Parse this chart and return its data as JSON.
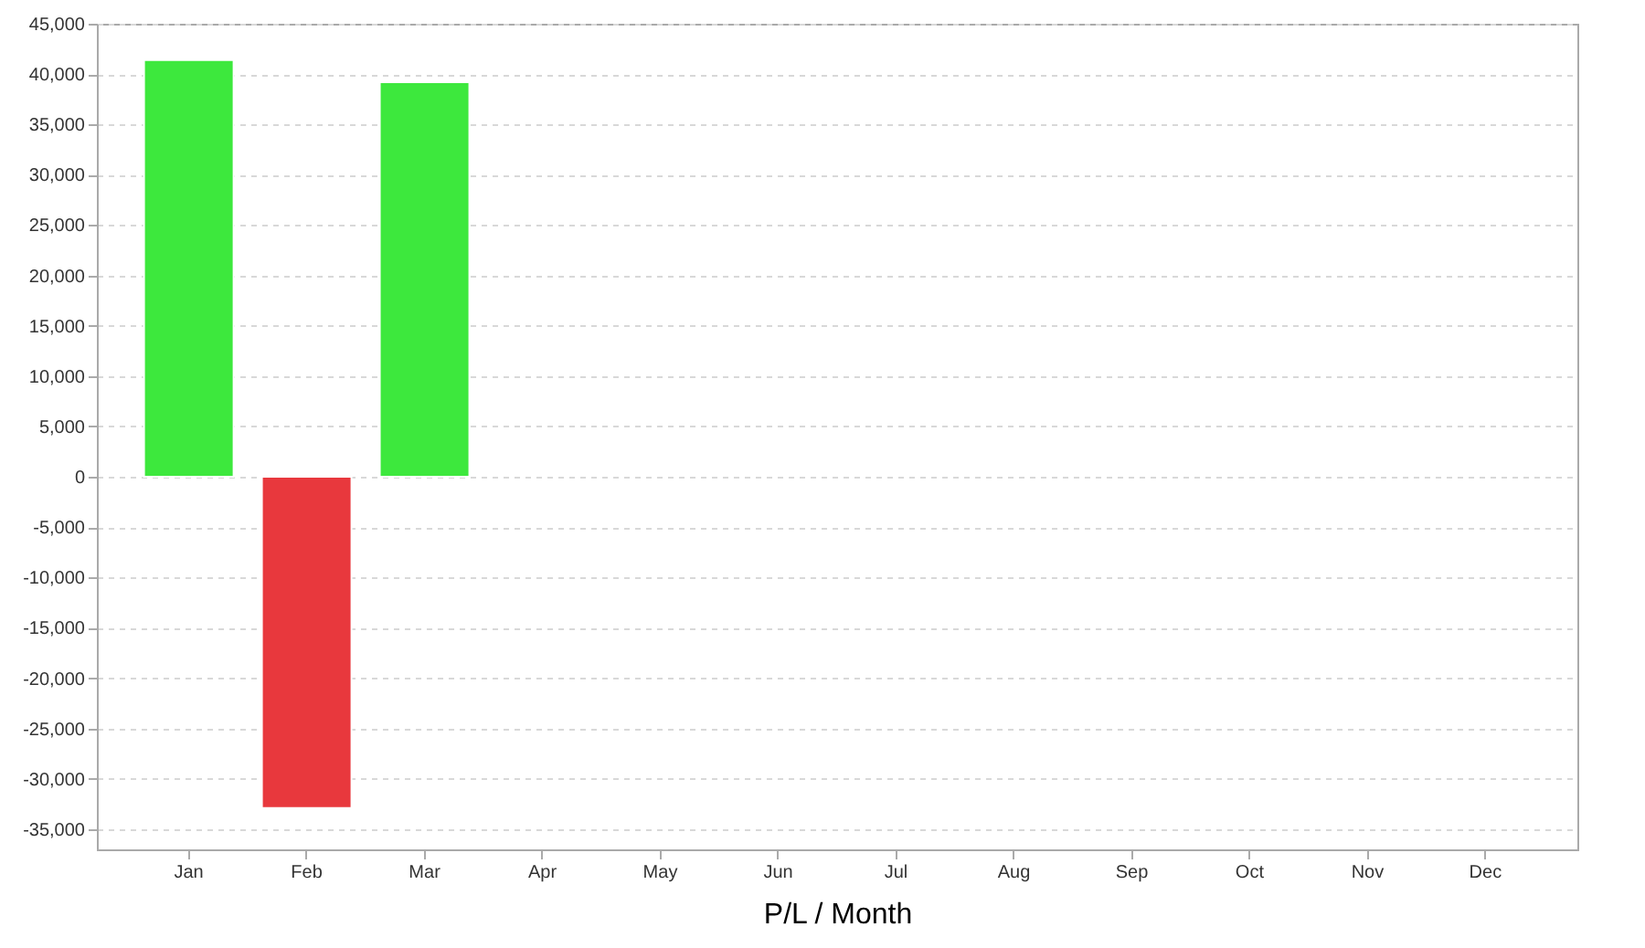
{
  "chart_data": {
    "type": "bar",
    "xlabel": "P/L / Month",
    "categories": [
      "Jan",
      "Feb",
      "Mar",
      "Apr",
      "May",
      "Jun",
      "Jul",
      "Aug",
      "Sep",
      "Oct",
      "Nov",
      "Dec"
    ],
    "values": [
      41400,
      -32900,
      39200,
      null,
      null,
      null,
      null,
      null,
      null,
      null,
      null,
      null
    ],
    "colors": [
      "#3de83d",
      "#e8383d",
      "#3de83d",
      "#3de83d",
      "#3de83d",
      "#3de83d",
      "#3de83d",
      "#3de83d",
      "#3de83d",
      "#3de83d",
      "#3de83d",
      "#3de83d"
    ],
    "ylim": [
      -37000,
      45000
    ],
    "yticks": [
      {
        "value": -35000,
        "label": "-35,000"
      },
      {
        "value": -30000,
        "label": "-30,000"
      },
      {
        "value": -25000,
        "label": "-25,000"
      },
      {
        "value": -20000,
        "label": "-20,000"
      },
      {
        "value": -15000,
        "label": "-15,000"
      },
      {
        "value": -10000,
        "label": "-10,000"
      },
      {
        "value": -5000,
        "label": "-5,000"
      },
      0,
      {
        "value": 5000,
        "label": "5,000"
      },
      {
        "value": 10000,
        "label": "10,000"
      },
      {
        "value": 15000,
        "label": "15,000"
      },
      {
        "value": 20000,
        "label": "20,000"
      },
      {
        "value": 25000,
        "label": "25,000"
      },
      {
        "value": 30000,
        "label": "30,000"
      },
      {
        "value": 35000,
        "label": "35,000"
      },
      {
        "value": 40000,
        "label": "40,000"
      },
      {
        "value": 45000,
        "label": "45,000"
      }
    ],
    "grid": "y"
  }
}
